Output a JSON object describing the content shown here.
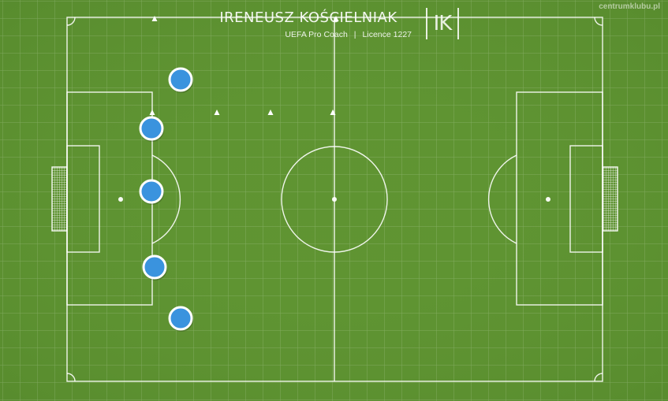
{
  "branding": {
    "coach_name": "IRENEUSZ KOŚCIELNIAK",
    "coach_role": "UEFA Pro Coach",
    "separator": "|",
    "licence": "Licence 1227",
    "logo_text": "IK",
    "watermark": "centrumklubu.pl"
  },
  "colors": {
    "pitch": "#5f9432",
    "line": "#ffffff",
    "player": "#3a93de",
    "cone": "#ffffff"
  },
  "players": [
    {
      "id": "player-1"
    },
    {
      "id": "player-2"
    },
    {
      "id": "player-3"
    },
    {
      "id": "player-4"
    },
    {
      "id": "player-5"
    }
  ],
  "cones": [
    {
      "id": "cone-1"
    },
    {
      "id": "cone-2"
    },
    {
      "id": "cone-3"
    },
    {
      "id": "cone-4"
    },
    {
      "id": "cone-5"
    },
    {
      "id": "cone-6"
    }
  ]
}
